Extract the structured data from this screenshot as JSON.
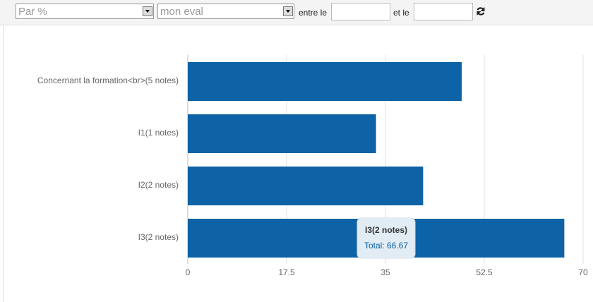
{
  "toolbar": {
    "select_1": "Par %",
    "select_2": "mon eval",
    "from_label": "entre le",
    "to_label": "et le"
  },
  "chart_data": {
    "type": "bar",
    "orientation": "horizontal",
    "categories": [
      "Concernant la formation<br>(5 notes)",
      "I1(1 notes)",
      "I2(2 notes)",
      "I3(2 notes)"
    ],
    "values": [
      48.5,
      33.33,
      41.67,
      66.67
    ],
    "color": "#0d63a5",
    "xlim": [
      0,
      70
    ],
    "xticks": [
      0,
      17.5,
      35,
      52.5,
      70
    ],
    "grid": true,
    "tooltip": {
      "title": "I3(2 notes)",
      "text": "Total: 66.67"
    }
  }
}
